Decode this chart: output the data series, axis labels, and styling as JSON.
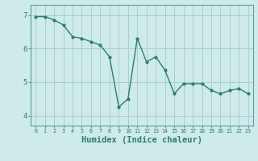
{
  "x": [
    0,
    1,
    2,
    3,
    4,
    5,
    6,
    7,
    8,
    9,
    10,
    11,
    12,
    13,
    14,
    15,
    16,
    17,
    18,
    19,
    20,
    21,
    22,
    23
  ],
  "y": [
    6.95,
    6.95,
    6.85,
    6.7,
    6.35,
    6.3,
    6.2,
    6.1,
    5.75,
    4.25,
    4.5,
    6.3,
    5.6,
    5.75,
    5.35,
    4.65,
    4.95,
    4.95,
    4.95,
    4.75,
    4.65,
    4.75,
    4.8,
    4.65
  ],
  "line_color": "#2d7d6e",
  "marker": "o",
  "marker_size": 2.0,
  "bg_color": "#ceeaea",
  "grid_color": "#aacfcf",
  "xlabel": "Humidex (Indice chaleur)",
  "xlabel_fontsize": 7.5,
  "yticks": [
    4,
    5,
    6,
    7
  ],
  "ylim": [
    3.7,
    7.3
  ],
  "xlim": [
    -0.5,
    23.5
  ],
  "tick_color": "#2d7d6e",
  "axis_color": "#5a9e9e",
  "line_width": 1.0
}
